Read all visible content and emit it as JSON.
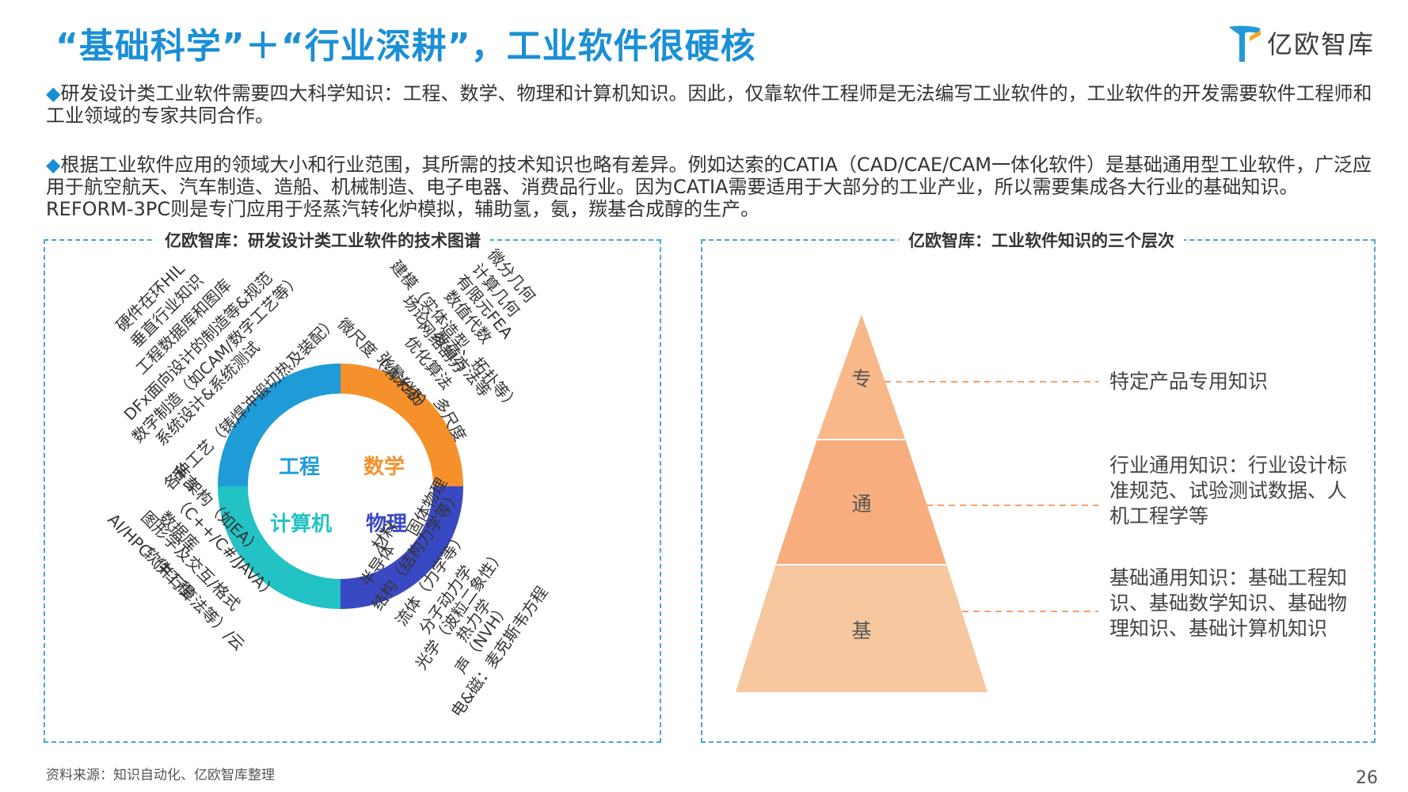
{
  "header": {
    "title": "“基础科学”＋“行业深耕”，工业软件很硬核",
    "logo_text": "亿欧智库"
  },
  "paragraphs": [
    {
      "bullet": "◆",
      "text": "研发设计类工业软件需要四大科学知识：工程、数学、物理和计算机知识。因此，仅靠软件工程师是无法编写工业软件的，工业软件的开发需要软件工程师和工业领域的专家共同合作。"
    },
    {
      "bullet": "◆",
      "text": "根据工业软件应用的领域大小和行业范围，其所需的技术知识也略有差异。例如达索的CATIA（CAD/CAE/CAM一体化软件）是基础通用型工业软件，广泛应用于航空航天、汽车制造、造船、机械制造、电子电器、消费品行业。因为CATIA需要适用于大部分的工业产业，所以需要集成各大行业的基础知识。REFORM-3PC则是专门应用于烃蒸汽转化炉模拟，辅助氢，氨，羰基合成醇的生产。"
    }
  ],
  "left_panel": {
    "title": "亿欧智库：研发设计类工业软件的技术图谱",
    "ring": {
      "segments": [
        {
          "label": "工程",
          "color": "#1f9bd7"
        },
        {
          "label": "数学",
          "color": "#f5902a"
        },
        {
          "label": "物理",
          "color": "#3949c4"
        },
        {
          "label": "计算机",
          "color": "#23c2c4"
        }
      ]
    },
    "engineering_items": [
      "硬件在环HIL",
      "垂直行业知识",
      "工程数据库和图库",
      "DFx面向设计的制造等&规范",
      "数字制造（如CAM/数字工艺等）",
      "系统设计&系统测试",
      "各种工艺（铸焊冲锻切热及装配）"
    ],
    "math_items": [
      "微分几何",
      "计算几何",
      "有限元FEA",
      "数值代数",
      "建模（实体造型、拓扑等）",
      "场论、数值方法等",
      "网络剖分",
      "优化算法",
      "微尺度（纳米级）",
      "张量分析",
      "多尺度"
    ],
    "physics_items": [
      "材料",
      "固体物理",
      "半导体",
      "结构（结构力学等）",
      "流体（力学等）",
      "分子动力学",
      "光学（波粒二象性）",
      "热力学",
      "声（NVH）",
      "电&磁：麦克斯韦方程"
    ],
    "computer_items": [
      "语言",
      "架构（如EA）",
      "（C++/C#/JAVA）",
      "数据库",
      "图形学及交互/格式",
      "软件工程",
      "AI/HPC（并行算法等）/云"
    ]
  },
  "right_panel": {
    "title": "亿欧智库：工业软件知识的三个层次",
    "levels": [
      {
        "tag": "专",
        "label": "特定产品专用知识",
        "color": "#f9b88a"
      },
      {
        "tag": "通",
        "label": "行业通用知识：行业设计标准规范、试验测试数据、人机工程学等",
        "color": "#f7ad7e"
      },
      {
        "tag": "基",
        "label": "基础通用知识：基础工程知识、基础数学知识、基础物理知识、基础计算机知识",
        "color": "#f7c79f"
      }
    ]
  },
  "footer": {
    "source": "资料来源：知识自动化、亿欧智库整理",
    "page": "26"
  }
}
